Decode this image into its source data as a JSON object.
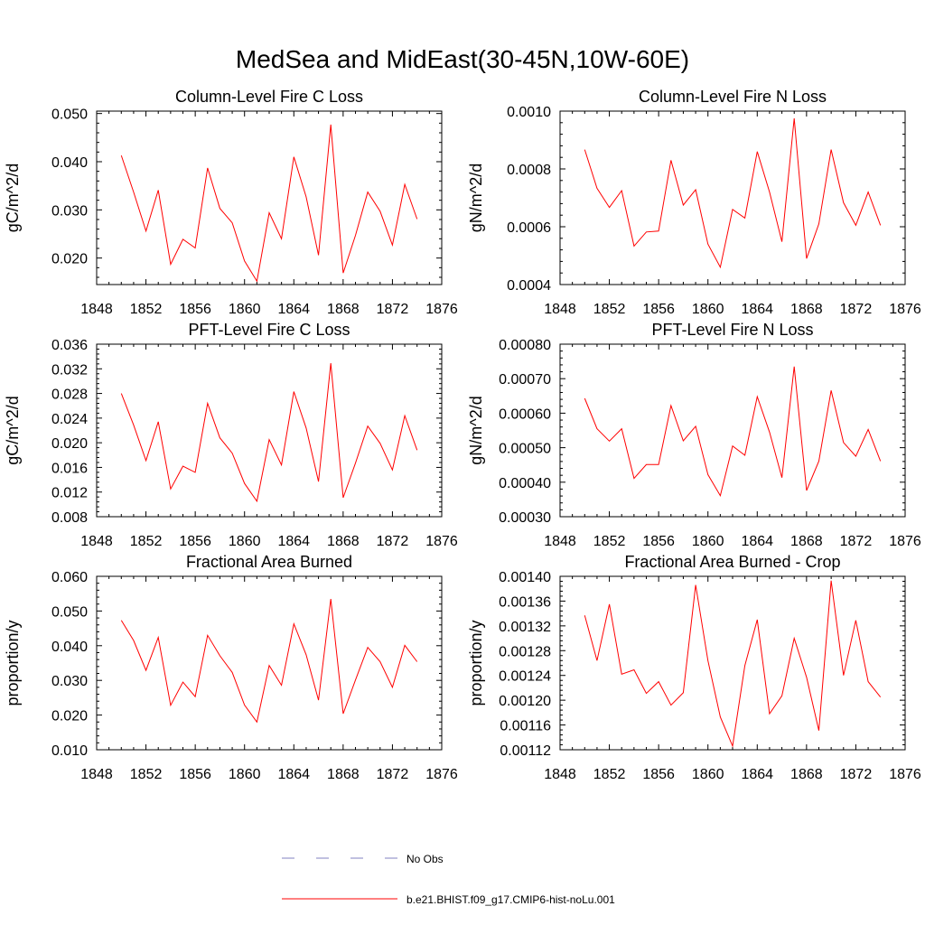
{
  "title": "MedSea and MidEast(30-45N,10W-60E)",
  "colors": {
    "series": "#ff0000",
    "obs": "#8080c0",
    "axis": "#000000"
  },
  "legend": [
    {
      "label": "No Obs",
      "style": "dashed",
      "color": "#8080c0"
    },
    {
      "label": "b.e21.BHIST.f09_g17.CMIP6-hist-noLu.001",
      "style": "solid",
      "color": "#ff0000"
    }
  ],
  "chart_data": [
    {
      "type": "line",
      "title": "Column-Level Fire C Loss",
      "ylabel": "gC/m^2/d",
      "xlim": [
        1848,
        1876
      ],
      "xticks": [
        "1848",
        "1852",
        "1856",
        "1860",
        "1864",
        "1868",
        "1872",
        "1876"
      ],
      "ylim": [
        0.0145,
        0.0505
      ],
      "yticks": [
        0.02,
        0.03,
        0.04,
        0.05
      ],
      "ytick_labels": [
        "0.020",
        "0.030",
        "0.040",
        "0.050"
      ],
      "x": [
        1850,
        1851,
        1852,
        1853,
        1854,
        1855,
        1856,
        1857,
        1858,
        1859,
        1860,
        1861,
        1862,
        1863,
        1864,
        1865,
        1866,
        1867,
        1868,
        1869,
        1870,
        1871,
        1872,
        1873,
        1874
      ],
      "series": [
        {
          "name": "b.e21.BHIST.f09_g17.CMIP6-hist-noLu.001",
          "values": [
            0.0413,
            0.0337,
            0.0256,
            0.0341,
            0.0187,
            0.0239,
            0.0221,
            0.0387,
            0.0303,
            0.0273,
            0.0194,
            0.0152,
            0.0294,
            0.024,
            0.041,
            0.0327,
            0.0206,
            0.0477,
            0.0169,
            0.0247,
            0.0337,
            0.0297,
            0.0227,
            0.0353,
            0.0281
          ]
        }
      ]
    },
    {
      "type": "line",
      "title": "Column-Level Fire N Loss",
      "ylabel": "gN/m^2/d",
      "xlim": [
        1848,
        1876
      ],
      "xticks": [
        "1848",
        "1852",
        "1856",
        "1860",
        "1864",
        "1868",
        "1872",
        "1876"
      ],
      "ylim": [
        0.0004,
        0.001
      ],
      "yticks": [
        0.0004,
        0.0006,
        0.0008,
        0.001
      ],
      "ytick_labels": [
        "0.0004",
        "0.0006",
        "0.0008",
        "0.0010"
      ],
      "x": [
        1850,
        1851,
        1852,
        1853,
        1854,
        1855,
        1856,
        1857,
        1858,
        1859,
        1860,
        1861,
        1862,
        1863,
        1864,
        1865,
        1866,
        1867,
        1868,
        1869,
        1870,
        1871,
        1872,
        1873,
        1874
      ],
      "series": [
        {
          "name": "b.e21.BHIST.f09_g17.CMIP6-hist-noLu.001",
          "values": [
            0.000867,
            0.000733,
            0.000667,
            0.000725,
            0.000533,
            0.000582,
            0.000585,
            0.00083,
            0.000675,
            0.000728,
            0.00054,
            0.00046,
            0.00066,
            0.00063,
            0.00086,
            0.00072,
            0.000548,
            0.000975,
            0.00049,
            0.00061,
            0.000867,
            0.000683,
            0.000605,
            0.00072,
            0.000605
          ]
        }
      ]
    },
    {
      "type": "line",
      "title": "PFT-Level Fire C Loss",
      "ylabel": "gC/m^2/d",
      "xlim": [
        1848,
        1876
      ],
      "xticks": [
        "1848",
        "1852",
        "1856",
        "1860",
        "1864",
        "1868",
        "1872",
        "1876"
      ],
      "ylim": [
        0.008,
        0.036
      ],
      "yticks": [
        0.008,
        0.012,
        0.016,
        0.02,
        0.024,
        0.028,
        0.032,
        0.036
      ],
      "ytick_labels": [
        "0.008",
        "0.012",
        "0.016",
        "0.020",
        "0.024",
        "0.028",
        "0.032",
        "0.036"
      ],
      "x": [
        1850,
        1851,
        1852,
        1853,
        1854,
        1855,
        1856,
        1857,
        1858,
        1859,
        1860,
        1861,
        1862,
        1863,
        1864,
        1865,
        1866,
        1867,
        1868,
        1869,
        1870,
        1871,
        1872,
        1873,
        1874
      ],
      "series": [
        {
          "name": "b.e21.BHIST.f09_g17.CMIP6-hist-noLu.001",
          "values": [
            0.028,
            0.0229,
            0.0171,
            0.0234,
            0.0125,
            0.0162,
            0.0152,
            0.0264,
            0.0208,
            0.0183,
            0.0134,
            0.0105,
            0.0205,
            0.0164,
            0.0283,
            0.0224,
            0.0137,
            0.0329,
            0.0111,
            0.0167,
            0.0227,
            0.0199,
            0.0156,
            0.0244,
            0.0188
          ]
        }
      ]
    },
    {
      "type": "line",
      "title": "PFT-Level Fire N Loss",
      "ylabel": "gN/m^2/d",
      "xlim": [
        1848,
        1876
      ],
      "xticks": [
        "1848",
        "1852",
        "1856",
        "1860",
        "1864",
        "1868",
        "1872",
        "1876"
      ],
      "ylim": [
        0.0003,
        0.0008
      ],
      "yticks": [
        0.0003,
        0.0004,
        0.0005,
        0.0006,
        0.0007,
        0.0008
      ],
      "ytick_labels": [
        "0.00030",
        "0.00040",
        "0.00050",
        "0.00060",
        "0.00070",
        "0.00080"
      ],
      "x": [
        1850,
        1851,
        1852,
        1853,
        1854,
        1855,
        1856,
        1857,
        1858,
        1859,
        1860,
        1861,
        1862,
        1863,
        1864,
        1865,
        1866,
        1867,
        1868,
        1869,
        1870,
        1871,
        1872,
        1873,
        1874
      ],
      "series": [
        {
          "name": "b.e21.BHIST.f09_g17.CMIP6-hist-noLu.001",
          "values": [
            0.000643,
            0.000555,
            0.000519,
            0.000555,
            0.000411,
            0.000451,
            0.000451,
            0.000622,
            0.00052,
            0.000562,
            0.000422,
            0.000361,
            0.000505,
            0.000478,
            0.000648,
            0.000545,
            0.000413,
            0.000735,
            0.000376,
            0.000461,
            0.000666,
            0.000515,
            0.000475,
            0.000553,
            0.000461
          ]
        }
      ]
    },
    {
      "type": "line",
      "title": "Fractional Area Burned",
      "ylabel": "proportion/y",
      "xlim": [
        1848,
        1876
      ],
      "xticks": [
        "1848",
        "1852",
        "1856",
        "1860",
        "1864",
        "1868",
        "1872",
        "1876"
      ],
      "ylim": [
        0.01,
        0.06
      ],
      "yticks": [
        0.01,
        0.02,
        0.03,
        0.04,
        0.05,
        0.06
      ],
      "ytick_labels": [
        "0.010",
        "0.020",
        "0.030",
        "0.040",
        "0.050",
        "0.060"
      ],
      "x": [
        1850,
        1851,
        1852,
        1853,
        1854,
        1855,
        1856,
        1857,
        1858,
        1859,
        1860,
        1861,
        1862,
        1863,
        1864,
        1865,
        1866,
        1867,
        1868,
        1869,
        1870,
        1871,
        1872,
        1873,
        1874
      ],
      "series": [
        {
          "name": "b.e21.BHIST.f09_g17.CMIP6-hist-noLu.001",
          "values": [
            0.0473,
            0.0415,
            0.0329,
            0.0424,
            0.0228,
            0.0295,
            0.0253,
            0.043,
            0.0371,
            0.0323,
            0.0229,
            0.018,
            0.0343,
            0.0286,
            0.0463,
            0.0374,
            0.0243,
            0.0535,
            0.0204,
            0.0301,
            0.0395,
            0.0354,
            0.028,
            0.0401,
            0.0354
          ]
        }
      ]
    },
    {
      "type": "line",
      "title": "Fractional Area Burned - Crop",
      "ylabel": "proportion/y",
      "xlim": [
        1848,
        1876
      ],
      "xticks": [
        "1848",
        "1852",
        "1856",
        "1860",
        "1864",
        "1868",
        "1872",
        "1876"
      ],
      "ylim": [
        0.00112,
        0.0014
      ],
      "yticks": [
        0.00112,
        0.00116,
        0.0012,
        0.00124,
        0.00128,
        0.00132,
        0.00136,
        0.0014
      ],
      "ytick_labels": [
        "0.00112",
        "0.00116",
        "0.00120",
        "0.00124",
        "0.00128",
        "0.00132",
        "0.00136",
        "0.00140"
      ],
      "x": [
        1850,
        1851,
        1852,
        1853,
        1854,
        1855,
        1856,
        1857,
        1858,
        1859,
        1860,
        1861,
        1862,
        1863,
        1864,
        1865,
        1866,
        1867,
        1868,
        1869,
        1870,
        1871,
        1872,
        1873,
        1874
      ],
      "series": [
        {
          "name": "b.e21.BHIST.f09_g17.CMIP6-hist-noLu.001",
          "values": [
            0.001337,
            0.001264,
            0.001355,
            0.001242,
            0.001249,
            0.001211,
            0.00123,
            0.001192,
            0.001212,
            0.001386,
            0.001264,
            0.001173,
            0.001126,
            0.001256,
            0.00133,
            0.001178,
            0.001207,
            0.0013,
            0.001237,
            0.001151,
            0.001393,
            0.00124,
            0.001329,
            0.00123,
            0.001205
          ]
        }
      ]
    }
  ]
}
